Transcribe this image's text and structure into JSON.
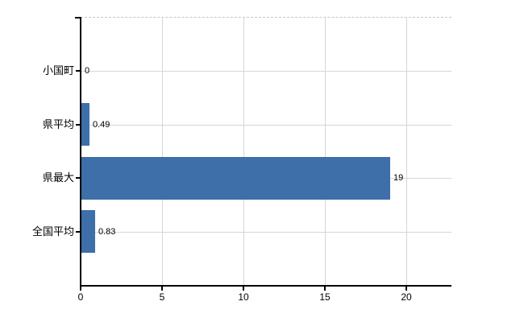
{
  "chart_data": {
    "type": "bar",
    "orientation": "horizontal",
    "categories": [
      "小国町",
      "県平均",
      "県最大",
      "全国平均"
    ],
    "values": [
      0,
      0.49,
      19,
      0.83
    ],
    "value_labels": [
      "0",
      "0.49",
      "19",
      "0.83"
    ],
    "x_ticks": [
      0,
      5,
      10,
      15,
      20
    ],
    "x_tick_labels": [
      "0",
      "5",
      "10",
      "15",
      "20"
    ],
    "xlim": [
      0,
      22.8
    ],
    "grid": true,
    "legend": false,
    "top_border_style": "dashed",
    "colors": {
      "bar": "#3E6FA8",
      "grid": "#D6D6D6",
      "top_border": "#C8C8C8",
      "axis": "#000000",
      "text": "#000000"
    }
  }
}
